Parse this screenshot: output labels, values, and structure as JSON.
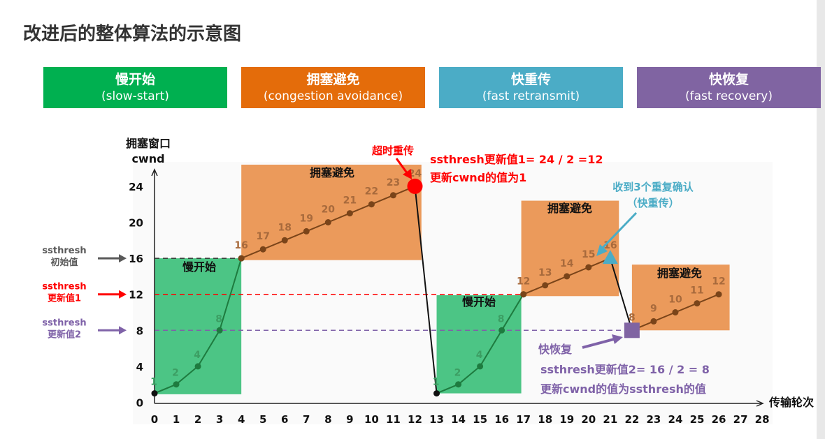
{
  "title": "改进后的整体算法的示意图",
  "phases": [
    {
      "name": "慢开始",
      "en": "(slow-start)",
      "color": "#00b050"
    },
    {
      "name": "拥塞避免",
      "en": "(congestion avoidance)",
      "color": "#e46c0a"
    },
    {
      "name": "快重传",
      "en": "(fast retransmit)",
      "color": "#4bacc6"
    },
    {
      "name": "快恢复",
      "en": "(fast recovery)",
      "color": "#8064a2"
    }
  ],
  "chart_data": {
    "type": "line",
    "ylabel": "拥塞窗口\ncwnd",
    "ylabel_1": "拥塞窗口",
    "ylabel_2": "cwnd",
    "xlabel": "传输轮次",
    "xticks": [
      0,
      1,
      2,
      3,
      4,
      5,
      6,
      7,
      8,
      9,
      10,
      11,
      12,
      13,
      14,
      15,
      16,
      17,
      18,
      19,
      20,
      21,
      22,
      23,
      24,
      25,
      26,
      27,
      28
    ],
    "yticks": [
      0,
      4,
      8,
      12,
      16,
      20,
      24
    ],
    "xlim": [
      0,
      28
    ],
    "ylim": [
      0,
      24
    ],
    "segments": [
      {
        "phase": "慢开始",
        "color": "#1e7b3f",
        "points": [
          [
            0,
            1
          ],
          [
            1,
            2
          ],
          [
            2,
            4
          ],
          [
            3,
            8
          ],
          [
            4,
            16
          ]
        ]
      },
      {
        "phase": "拥塞避免",
        "color": "#7a4419",
        "points": [
          [
            4,
            16
          ],
          [
            5,
            17
          ],
          [
            6,
            18
          ],
          [
            7,
            19
          ],
          [
            8,
            20
          ],
          [
            9,
            21
          ],
          [
            10,
            22
          ],
          [
            11,
            23
          ],
          [
            12,
            24
          ]
        ]
      },
      {
        "phase": "超时",
        "color": "#111111",
        "points": [
          [
            12,
            24
          ],
          [
            13,
            1
          ]
        ]
      },
      {
        "phase": "慢开始",
        "color": "#1e7b3f",
        "points": [
          [
            13,
            1
          ],
          [
            14,
            2
          ],
          [
            15,
            4
          ],
          [
            16,
            8
          ],
          [
            17,
            12
          ]
        ]
      },
      {
        "phase": "拥塞避免",
        "color": "#7a4419",
        "points": [
          [
            17,
            12
          ],
          [
            18,
            13
          ],
          [
            19,
            14
          ],
          [
            20,
            15
          ],
          [
            21,
            16
          ]
        ]
      },
      {
        "phase": "快恢复",
        "color": "#111111",
        "points": [
          [
            21,
            16
          ],
          [
            22,
            8
          ]
        ]
      },
      {
        "phase": "拥塞避免",
        "color": "#7a4419",
        "points": [
          [
            22,
            8
          ],
          [
            23,
            9
          ],
          [
            24,
            10
          ],
          [
            25,
            11
          ],
          [
            26,
            12
          ]
        ]
      }
    ],
    "region_labels": [
      "慢开始",
      "拥塞避免",
      "慢开始",
      "拥塞避免",
      "拥塞避免"
    ],
    "ssthresh_lines": [
      {
        "value": 16,
        "label_1": "ssthresh",
        "label_2": "初始值",
        "color": "#595959"
      },
      {
        "value": 12,
        "label_1": "ssthresh",
        "label_2": "更新值1",
        "color": "#ff0000"
      },
      {
        "value": 8,
        "label_1": "ssthresh",
        "label_2": "更新值2",
        "color": "#7f62a8"
      }
    ],
    "annotations": {
      "timeout": {
        "label": "超时重传",
        "line1": "ssthresh更新值1= 24 / 2 =12",
        "line2": "更新cwnd的值为1",
        "color": "#ff0000"
      },
      "fast_retransmit": {
        "line1": "收到3个重复确认",
        "line2": "（快重传）",
        "color": "#4bacc6"
      },
      "fast_recovery": {
        "label": "快恢复",
        "line1": "ssthresh更新值2= 16 / 2 = 8",
        "line2": "更新cwnd的值为ssthresh的值",
        "color": "#7f62a8"
      }
    }
  }
}
